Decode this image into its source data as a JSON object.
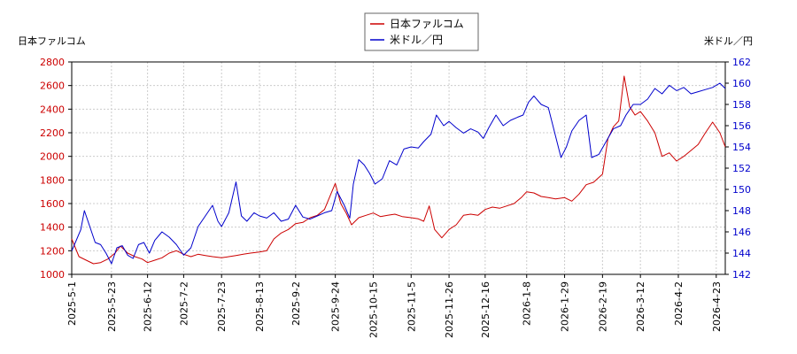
{
  "chart_data": {
    "type": "line",
    "left_axis_label": "日本ファルコム",
    "right_axis_label": "米ドル／円",
    "x_tick_labels": [
      "2025-5-1",
      "2025-5-23",
      "2025-6-12",
      "2025-7-2",
      "2025-7-23",
      "2025-8-13",
      "2025-9-2",
      "2025-9-24",
      "2025-10-15",
      "2025-11-5",
      "2025-11-26",
      "2025-12-16",
      "2026-1-8",
      "2026-1-29",
      "2026-2-19",
      "2026-3-12",
      "2026-4-2",
      "2026-4-23"
    ],
    "x_range": [
      "2025-5-1",
      "2026-4-28"
    ],
    "y_left": {
      "range": [
        1000,
        2800
      ],
      "ticks": [
        1000,
        1200,
        1400,
        1600,
        1800,
        2000,
        2200,
        2400,
        2600,
        2800
      ],
      "color": "#cc0000"
    },
    "y_right": {
      "range": [
        142,
        162
      ],
      "ticks": [
        142,
        144,
        146,
        148,
        150,
        152,
        154,
        156,
        158,
        160,
        162
      ],
      "color": "#0000cc"
    },
    "grid": true,
    "legend_position": "top-center",
    "series": [
      {
        "name": "日本ファルコム",
        "axis": "left",
        "color": "#cc0000",
        "points": [
          [
            "2025-5-1",
            1300
          ],
          [
            "2025-5-5",
            1150
          ],
          [
            "2025-5-9",
            1120
          ],
          [
            "2025-5-13",
            1090
          ],
          [
            "2025-5-17",
            1100
          ],
          [
            "2025-5-21",
            1130
          ],
          [
            "2025-5-25",
            1180
          ],
          [
            "2025-5-28",
            1240
          ],
          [
            "2025-6-1",
            1180
          ],
          [
            "2025-6-5",
            1150
          ],
          [
            "2025-6-9",
            1130
          ],
          [
            "2025-6-12",
            1100
          ],
          [
            "2025-6-16",
            1120
          ],
          [
            "2025-6-20",
            1140
          ],
          [
            "2025-6-24",
            1180
          ],
          [
            "2025-6-28",
            1200
          ],
          [
            "2025-7-2",
            1170
          ],
          [
            "2025-7-6",
            1150
          ],
          [
            "2025-7-10",
            1170
          ],
          [
            "2025-7-14",
            1160
          ],
          [
            "2025-7-18",
            1150
          ],
          [
            "2025-7-23",
            1140
          ],
          [
            "2025-7-27",
            1150
          ],
          [
            "2025-7-31",
            1160
          ],
          [
            "2025-8-4",
            1170
          ],
          [
            "2025-8-8",
            1180
          ],
          [
            "2025-8-13",
            1190
          ],
          [
            "2025-8-17",
            1200
          ],
          [
            "2025-8-21",
            1300
          ],
          [
            "2025-8-25",
            1350
          ],
          [
            "2025-8-29",
            1380
          ],
          [
            "2025-9-2",
            1430
          ],
          [
            "2025-9-6",
            1440
          ],
          [
            "2025-9-10",
            1480
          ],
          [
            "2025-9-14",
            1500
          ],
          [
            "2025-9-18",
            1550
          ],
          [
            "2025-9-24",
            1770
          ],
          [
            "2025-9-27",
            1600
          ],
          [
            "2025-9-30",
            1520
          ],
          [
            "2025-10-3",
            1420
          ],
          [
            "2025-10-7",
            1480
          ],
          [
            "2025-10-11",
            1500
          ],
          [
            "2025-10-15",
            1520
          ],
          [
            "2025-10-19",
            1490
          ],
          [
            "2025-10-23",
            1500
          ],
          [
            "2025-10-27",
            1510
          ],
          [
            "2025-10-31",
            1490
          ],
          [
            "2025-11-5",
            1480
          ],
          [
            "2025-11-9",
            1470
          ],
          [
            "2025-11-12",
            1450
          ],
          [
            "2025-11-15",
            1580
          ],
          [
            "2025-11-18",
            1380
          ],
          [
            "2025-11-22",
            1310
          ],
          [
            "2025-11-26",
            1380
          ],
          [
            "2025-11-30",
            1420
          ],
          [
            "2025-12-4",
            1500
          ],
          [
            "2025-12-8",
            1510
          ],
          [
            "2025-12-12",
            1500
          ],
          [
            "2025-12-16",
            1550
          ],
          [
            "2025-12-20",
            1570
          ],
          [
            "2025-12-24",
            1560
          ],
          [
            "2025-12-28",
            1580
          ],
          [
            "2026-1-1",
            1600
          ],
          [
            "2026-1-5",
            1650
          ],
          [
            "2026-1-8",
            1700
          ],
          [
            "2026-1-12",
            1690
          ],
          [
            "2026-1-16",
            1660
          ],
          [
            "2026-1-20",
            1650
          ],
          [
            "2026-1-24",
            1640
          ],
          [
            "2026-1-29",
            1650
          ],
          [
            "2026-2-2",
            1620
          ],
          [
            "2026-2-6",
            1680
          ],
          [
            "2026-2-10",
            1760
          ],
          [
            "2026-2-14",
            1780
          ],
          [
            "2026-2-19",
            1850
          ],
          [
            "2026-2-22",
            2150
          ],
          [
            "2026-2-25",
            2250
          ],
          [
            "2026-2-28",
            2300
          ],
          [
            "2026-3-3",
            2680
          ],
          [
            "2026-3-6",
            2420
          ],
          [
            "2026-3-9",
            2350
          ],
          [
            "2026-3-12",
            2380
          ],
          [
            "2026-3-16",
            2300
          ],
          [
            "2026-3-20",
            2200
          ],
          [
            "2026-3-24",
            2000
          ],
          [
            "2026-3-28",
            2030
          ],
          [
            "2026-4-1",
            1960
          ],
          [
            "2026-4-5",
            2000
          ],
          [
            "2026-4-9",
            2050
          ],
          [
            "2026-4-13",
            2100
          ],
          [
            "2026-4-17",
            2200
          ],
          [
            "2026-4-21",
            2290
          ],
          [
            "2026-4-25",
            2200
          ],
          [
            "2026-4-28",
            2080
          ]
        ]
      },
      {
        "name": "米ドル／円",
        "axis": "right",
        "color": "#0000cc",
        "points": [
          [
            "2025-5-1",
            144.2
          ],
          [
            "2025-5-3",
            145.0
          ],
          [
            "2025-5-6",
            146.2
          ],
          [
            "2025-5-8",
            148.0
          ],
          [
            "2025-5-11",
            146.5
          ],
          [
            "2025-5-14",
            145.0
          ],
          [
            "2025-5-17",
            144.8
          ],
          [
            "2025-5-20",
            144.0
          ],
          [
            "2025-5-23",
            143.0
          ],
          [
            "2025-5-26",
            144.5
          ],
          [
            "2025-5-29",
            144.7
          ],
          [
            "2025-6-1",
            143.8
          ],
          [
            "2025-6-4",
            143.5
          ],
          [
            "2025-6-7",
            144.8
          ],
          [
            "2025-6-10",
            145.0
          ],
          [
            "2025-6-13",
            144.0
          ],
          [
            "2025-6-16",
            145.2
          ],
          [
            "2025-6-20",
            146.0
          ],
          [
            "2025-6-24",
            145.5
          ],
          [
            "2025-6-28",
            144.8
          ],
          [
            "2025-7-2",
            143.8
          ],
          [
            "2025-7-6",
            144.5
          ],
          [
            "2025-7-10",
            146.5
          ],
          [
            "2025-7-14",
            147.5
          ],
          [
            "2025-7-18",
            148.5
          ],
          [
            "2025-7-21",
            147.0
          ],
          [
            "2025-7-23",
            146.5
          ],
          [
            "2025-7-27",
            147.8
          ],
          [
            "2025-7-31",
            150.7
          ],
          [
            "2025-8-3",
            147.5
          ],
          [
            "2025-8-6",
            147.0
          ],
          [
            "2025-8-10",
            147.8
          ],
          [
            "2025-8-13",
            147.5
          ],
          [
            "2025-8-17",
            147.3
          ],
          [
            "2025-8-21",
            147.8
          ],
          [
            "2025-8-25",
            147.0
          ],
          [
            "2025-8-29",
            147.2
          ],
          [
            "2025-9-2",
            148.5
          ],
          [
            "2025-9-6",
            147.4
          ],
          [
            "2025-9-10",
            147.2
          ],
          [
            "2025-9-14",
            147.5
          ],
          [
            "2025-9-18",
            147.8
          ],
          [
            "2025-9-22",
            148.0
          ],
          [
            "2025-9-25",
            149.8
          ],
          [
            "2025-9-29",
            148.5
          ],
          [
            "2025-10-2",
            147.3
          ],
          [
            "2025-10-4",
            150.5
          ],
          [
            "2025-10-7",
            152.8
          ],
          [
            "2025-10-10",
            152.3
          ],
          [
            "2025-10-13",
            151.5
          ],
          [
            "2025-10-16",
            150.5
          ],
          [
            "2025-10-20",
            151.0
          ],
          [
            "2025-10-24",
            152.7
          ],
          [
            "2025-10-28",
            152.3
          ],
          [
            "2025-11-1",
            153.8
          ],
          [
            "2025-11-5",
            154.0
          ],
          [
            "2025-11-9",
            153.9
          ],
          [
            "2025-11-12",
            154.5
          ],
          [
            "2025-11-16",
            155.2
          ],
          [
            "2025-11-19",
            157.0
          ],
          [
            "2025-11-23",
            156.0
          ],
          [
            "2025-11-26",
            156.4
          ],
          [
            "2025-11-30",
            155.8
          ],
          [
            "2025-12-4",
            155.3
          ],
          [
            "2025-12-8",
            155.7
          ],
          [
            "2025-12-12",
            155.4
          ],
          [
            "2025-12-15",
            154.8
          ],
          [
            "2025-12-18",
            155.8
          ],
          [
            "2025-12-22",
            157.0
          ],
          [
            "2025-12-26",
            156.0
          ],
          [
            "2025-12-30",
            156.5
          ],
          [
            "2026-1-3",
            156.8
          ],
          [
            "2026-1-6",
            157.0
          ],
          [
            "2026-1-9",
            158.2
          ],
          [
            "2026-1-12",
            158.8
          ],
          [
            "2026-1-16",
            158.0
          ],
          [
            "2026-1-20",
            157.7
          ],
          [
            "2026-1-24",
            155.0
          ],
          [
            "2026-1-27",
            153.0
          ],
          [
            "2026-1-30",
            154.0
          ],
          [
            "2026-2-2",
            155.5
          ],
          [
            "2026-2-6",
            156.5
          ],
          [
            "2026-2-10",
            157.0
          ],
          [
            "2026-2-13",
            153.0
          ],
          [
            "2026-2-17",
            153.3
          ],
          [
            "2026-2-21",
            154.5
          ],
          [
            "2026-2-25",
            155.7
          ],
          [
            "2026-3-1",
            156.0
          ],
          [
            "2026-3-4",
            157.0
          ],
          [
            "2026-3-8",
            158.0
          ],
          [
            "2026-3-12",
            158.0
          ],
          [
            "2026-3-16",
            158.5
          ],
          [
            "2026-3-20",
            159.5
          ],
          [
            "2026-3-24",
            159.0
          ],
          [
            "2026-3-28",
            159.8
          ],
          [
            "2026-4-1",
            159.3
          ],
          [
            "2026-4-5",
            159.6
          ],
          [
            "2026-4-9",
            159.0
          ],
          [
            "2026-4-13",
            159.2
          ],
          [
            "2026-4-17",
            159.4
          ],
          [
            "2026-4-21",
            159.6
          ],
          [
            "2026-4-25",
            160.0
          ],
          [
            "2026-4-28",
            159.5
          ]
        ]
      }
    ]
  }
}
